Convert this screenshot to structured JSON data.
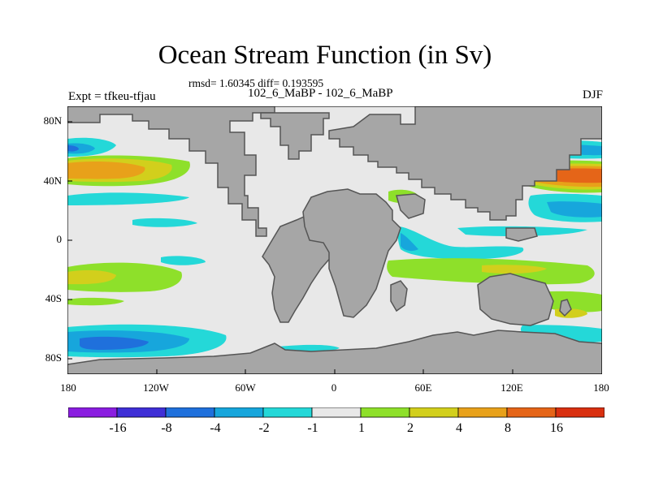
{
  "title": "Ocean Stream Function (in Sv)",
  "stats": "rmsd= 1.60345 diff= 0.193595",
  "experiment": "Expt = tfkeu-tfjau",
  "period": "102_6_MaBP - 102_6_MaBP",
  "season": "DJF",
  "y_ticks": [
    "80N",
    "40N",
    "0",
    "40S",
    "80S"
  ],
  "x_ticks": [
    "180",
    "120W",
    "60W",
    "0",
    "60E",
    "120E",
    "180"
  ],
  "colorbar": {
    "labels": [
      "-16",
      "-8",
      "-4",
      "-2",
      "-1",
      "1",
      "2",
      "4",
      "8",
      "16"
    ],
    "colors": [
      "#8a1de0",
      "#3f2fd6",
      "#1f70dc",
      "#17a6dc",
      "#24d8d8",
      "#e8e8e8",
      "#8ee02a",
      "#d2cf1c",
      "#e8a11a",
      "#e56518",
      "#d93010"
    ]
  },
  "land_color": "#a6a6a6"
}
